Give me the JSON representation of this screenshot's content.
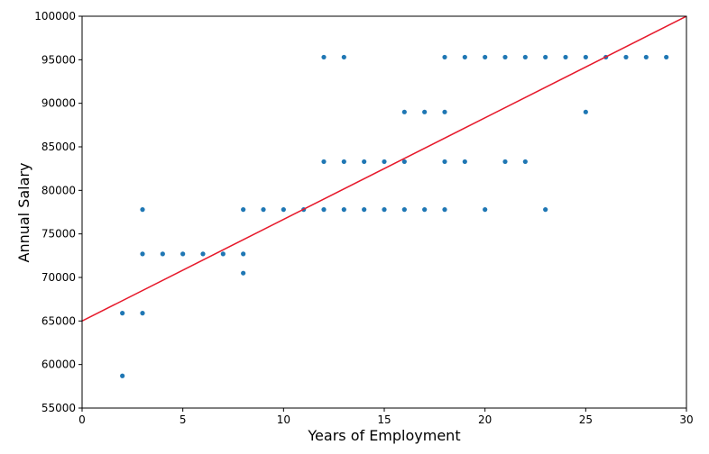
{
  "chart_data": {
    "type": "scatter",
    "title": "",
    "xlabel": "Years of Employment",
    "ylabel": "Annual Salary",
    "xlim": [
      0,
      30
    ],
    "ylim": [
      55000,
      100000
    ],
    "x_ticks": [
      0,
      5,
      10,
      15,
      20,
      25,
      30
    ],
    "y_ticks": [
      55000,
      60000,
      65000,
      70000,
      75000,
      80000,
      85000,
      90000,
      95000,
      100000
    ],
    "grid": false,
    "legend": "none",
    "point_color": "#1f77b4",
    "line_color": "#e6192b",
    "points": [
      [
        2,
        65900
      ],
      [
        2,
        58700
      ],
      [
        3,
        65900
      ],
      [
        3,
        72700
      ],
      [
        3,
        77800
      ],
      [
        4,
        72700
      ],
      [
        5,
        72700
      ],
      [
        6,
        72700
      ],
      [
        7,
        72700
      ],
      [
        8,
        72700
      ],
      [
        8,
        77800
      ],
      [
        8,
        70500
      ],
      [
        9,
        77800
      ],
      [
        10,
        77800
      ],
      [
        11,
        77800
      ],
      [
        12,
        77800
      ],
      [
        12,
        83300
      ],
      [
        12,
        95300
      ],
      [
        13,
        77800
      ],
      [
        13,
        83300
      ],
      [
        13,
        95300
      ],
      [
        14,
        77800
      ],
      [
        14,
        83300
      ],
      [
        15,
        77800
      ],
      [
        15,
        83300
      ],
      [
        16,
        77800
      ],
      [
        16,
        83300
      ],
      [
        16,
        89000
      ],
      [
        17,
        77800
      ],
      [
        17,
        89000
      ],
      [
        18,
        77800
      ],
      [
        18,
        83300
      ],
      [
        18,
        89000
      ],
      [
        18,
        95300
      ],
      [
        19,
        83300
      ],
      [
        19,
        95300
      ],
      [
        20,
        77800
      ],
      [
        20,
        95300
      ],
      [
        21,
        83300
      ],
      [
        21,
        95300
      ],
      [
        22,
        83300
      ],
      [
        22,
        95300
      ],
      [
        23,
        77800
      ],
      [
        23,
        95300
      ],
      [
        24,
        95300
      ],
      [
        25,
        89000
      ],
      [
        25,
        95300
      ],
      [
        26,
        95300
      ],
      [
        27,
        95300
      ],
      [
        28,
        95300
      ],
      [
        29,
        95300
      ]
    ],
    "fit_line": {
      "x": [
        0,
        30
      ],
      "y": [
        65000,
        100000
      ]
    }
  }
}
